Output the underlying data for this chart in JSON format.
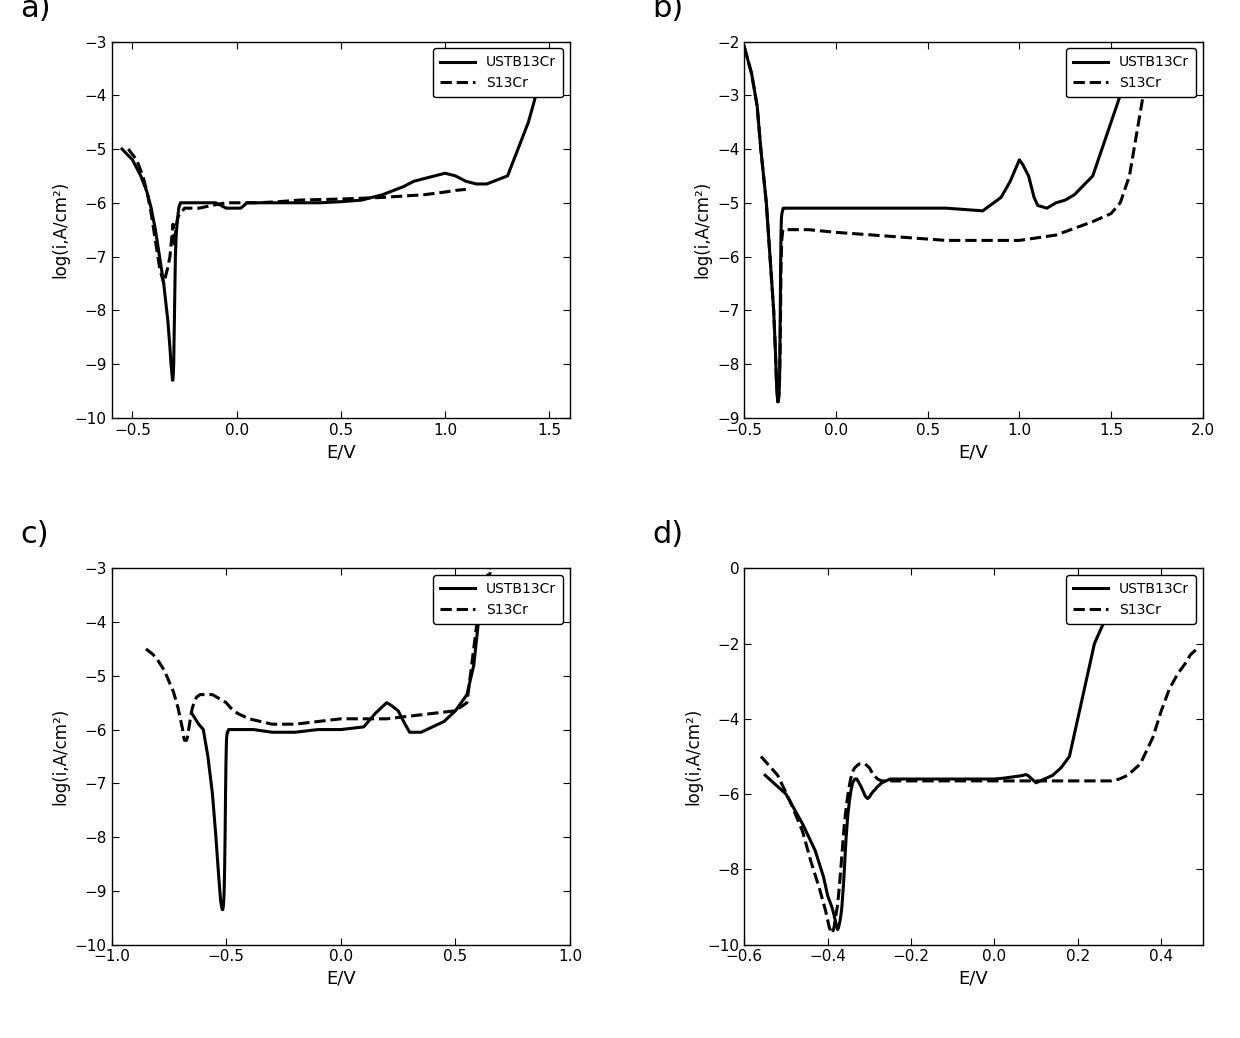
{
  "panels": [
    "a)",
    "b)",
    "c)",
    "d)"
  ],
  "ylabel": "log(i,A/cm²)",
  "xlabel": "E/V",
  "legend_solid": "USTB13Cr",
  "legend_dashed": "S13Cr",
  "panel_a": {
    "xlim": [
      -0.6,
      1.6
    ],
    "ylim": [
      -10,
      -3
    ],
    "xticks": [
      -0.5,
      0.0,
      0.5,
      1.0,
      1.5
    ],
    "yticks": [
      -10,
      -9,
      -8,
      -7,
      -6,
      -5,
      -4,
      -3
    ],
    "solid_x": [
      -0.55,
      -0.5,
      -0.46,
      -0.43,
      -0.41,
      -0.39,
      -0.37,
      -0.35,
      -0.33,
      -0.32,
      -0.315,
      -0.31,
      -0.308,
      -0.306,
      -0.304,
      -0.302,
      -0.3,
      -0.298,
      -0.296,
      -0.294,
      -0.292,
      -0.29,
      -0.286,
      -0.282,
      -0.278,
      -0.274,
      -0.27,
      -0.265,
      -0.255,
      -0.245,
      -0.235,
      -0.22,
      -0.2,
      -0.15,
      -0.1,
      -0.05,
      -0.02,
      0.0,
      0.02,
      0.05,
      0.1,
      0.2,
      0.3,
      0.4,
      0.5,
      0.6,
      0.7,
      0.8,
      0.85,
      0.9,
      0.95,
      1.0,
      1.05,
      1.1,
      1.15,
      1.2,
      1.3,
      1.4,
      1.45,
      1.5
    ],
    "solid_y": [
      -5.0,
      -5.2,
      -5.5,
      -5.8,
      -6.1,
      -6.5,
      -7.0,
      -7.5,
      -8.2,
      -8.7,
      -9.0,
      -9.2,
      -9.3,
      -9.3,
      -9.2,
      -9.0,
      -8.5,
      -8.0,
      -7.5,
      -7.0,
      -6.8,
      -6.6,
      -6.4,
      -6.25,
      -6.1,
      -6.05,
      -6.0,
      -6.0,
      -6.0,
      -6.0,
      -6.0,
      -6.0,
      -6.0,
      -6.0,
      -6.0,
      -6.1,
      -6.1,
      -6.1,
      -6.1,
      -6.0,
      -6.0,
      -6.0,
      -6.0,
      -6.0,
      -5.98,
      -5.95,
      -5.85,
      -5.7,
      -5.6,
      -5.55,
      -5.5,
      -5.45,
      -5.5,
      -5.6,
      -5.65,
      -5.65,
      -5.5,
      -4.5,
      -3.8,
      -3.3
    ],
    "dashed_x": [
      -0.52,
      -0.48,
      -0.45,
      -0.43,
      -0.41,
      -0.39,
      -0.37,
      -0.35,
      -0.33,
      -0.32,
      -0.315,
      -0.31,
      -0.308,
      -0.306,
      -0.304,
      -0.302,
      -0.3,
      -0.298,
      -0.296,
      -0.292,
      -0.288,
      -0.284,
      -0.28,
      -0.27,
      -0.26,
      -0.25,
      -0.22,
      -0.18,
      -0.12,
      -0.05,
      0.0,
      0.1,
      0.2,
      0.3,
      0.5,
      0.7,
      0.9,
      1.0,
      1.05,
      1.1
    ],
    "dashed_y": [
      -5.0,
      -5.2,
      -5.5,
      -5.8,
      -6.2,
      -6.7,
      -7.2,
      -7.5,
      -7.2,
      -7.0,
      -6.8,
      -6.6,
      -6.5,
      -6.4,
      -6.4,
      -6.5,
      -6.7,
      -6.8,
      -6.7,
      -6.5,
      -6.4,
      -6.3,
      -6.25,
      -6.2,
      -6.15,
      -6.1,
      -6.1,
      -6.1,
      -6.05,
      -6.0,
      -6.0,
      -6.0,
      -5.98,
      -5.95,
      -5.93,
      -5.9,
      -5.85,
      -5.8,
      -5.77,
      -5.75
    ]
  },
  "panel_b": {
    "xlim": [
      -0.5,
      2.0
    ],
    "ylim": [
      -9,
      -2
    ],
    "xticks": [
      -0.5,
      0.0,
      0.5,
      1.0,
      1.5,
      2.0
    ],
    "yticks": [
      -9,
      -8,
      -7,
      -6,
      -5,
      -4,
      -3,
      -2
    ],
    "solid_x": [
      -0.5,
      -0.46,
      -0.43,
      -0.41,
      -0.38,
      -0.36,
      -0.34,
      -0.33,
      -0.325,
      -0.32,
      -0.318,
      -0.315,
      -0.312,
      -0.31,
      -0.308,
      -0.306,
      -0.304,
      -0.302,
      -0.3,
      -0.298,
      -0.295,
      -0.292,
      -0.288,
      -0.284,
      -0.28,
      -0.27,
      -0.26,
      -0.25,
      -0.22,
      -0.18,
      -0.1,
      0.0,
      0.2,
      0.4,
      0.6,
      0.8,
      0.9,
      0.95,
      1.0,
      1.02,
      1.05,
      1.08,
      1.1,
      1.15,
      1.2,
      1.25,
      1.3,
      1.4,
      1.5,
      1.55
    ],
    "solid_y": [
      -2.1,
      -2.6,
      -3.2,
      -4.0,
      -5.0,
      -6.0,
      -7.0,
      -7.8,
      -8.3,
      -8.6,
      -8.7,
      -8.7,
      -8.6,
      -8.5,
      -8.3,
      -7.8,
      -7.0,
      -6.2,
      -5.6,
      -5.3,
      -5.2,
      -5.15,
      -5.1,
      -5.1,
      -5.1,
      -5.1,
      -5.1,
      -5.1,
      -5.1,
      -5.1,
      -5.1,
      -5.1,
      -5.1,
      -5.1,
      -5.1,
      -5.15,
      -4.9,
      -4.6,
      -4.2,
      -4.3,
      -4.5,
      -4.9,
      -5.05,
      -5.1,
      -5.0,
      -4.95,
      -4.85,
      -4.5,
      -3.5,
      -3.0
    ],
    "dashed_x": [
      -0.5,
      -0.46,
      -0.43,
      -0.41,
      -0.38,
      -0.36,
      -0.34,
      -0.33,
      -0.325,
      -0.32,
      -0.318,
      -0.315,
      -0.312,
      -0.31,
      -0.308,
      -0.305,
      -0.302,
      -0.3,
      -0.296,
      -0.29,
      -0.28,
      -0.26,
      -0.22,
      -0.15,
      0.0,
      0.2,
      0.4,
      0.6,
      0.8,
      1.0,
      1.2,
      1.4,
      1.5,
      1.55,
      1.6,
      1.65,
      1.7
    ],
    "dashed_y": [
      -2.1,
      -2.6,
      -3.2,
      -4.0,
      -5.0,
      -6.0,
      -7.0,
      -7.8,
      -8.3,
      -8.6,
      -8.7,
      -8.7,
      -8.6,
      -8.5,
      -8.3,
      -7.8,
      -7.0,
      -6.2,
      -5.7,
      -5.5,
      -5.5,
      -5.5,
      -5.5,
      -5.5,
      -5.55,
      -5.6,
      -5.65,
      -5.7,
      -5.7,
      -5.7,
      -5.6,
      -5.35,
      -5.2,
      -5.0,
      -4.5,
      -3.5,
      -2.5
    ]
  },
  "panel_c": {
    "xlim": [
      -1.0,
      1.0
    ],
    "ylim": [
      -10,
      -3
    ],
    "xticks": [
      -1.0,
      -0.5,
      0.0,
      0.5,
      1.0
    ],
    "yticks": [
      -10,
      -9,
      -8,
      -7,
      -6,
      -5,
      -4,
      -3
    ],
    "solid_x": [
      -0.65,
      -0.62,
      -0.6,
      -0.58,
      -0.56,
      -0.545,
      -0.535,
      -0.528,
      -0.524,
      -0.52,
      -0.517,
      -0.515,
      -0.513,
      -0.511,
      -0.509,
      -0.507,
      -0.505,
      -0.503,
      -0.501,
      -0.499,
      -0.497,
      -0.495,
      -0.493,
      -0.49,
      -0.485,
      -0.48,
      -0.47,
      -0.46,
      -0.45,
      -0.42,
      -0.38,
      -0.3,
      -0.2,
      -0.1,
      0.0,
      0.1,
      0.15,
      0.2,
      0.22,
      0.25,
      0.28,
      0.3,
      0.35,
      0.4,
      0.45,
      0.5,
      0.55,
      0.58,
      0.6,
      0.62,
      0.65
    ],
    "solid_y": [
      -5.7,
      -5.9,
      -6.0,
      -6.5,
      -7.2,
      -8.0,
      -8.6,
      -9.0,
      -9.2,
      -9.3,
      -9.35,
      -9.35,
      -9.3,
      -9.2,
      -9.0,
      -8.6,
      -8.0,
      -7.2,
      -6.6,
      -6.2,
      -6.1,
      -6.05,
      -6.05,
      -6.0,
      -6.0,
      -6.0,
      -6.0,
      -6.0,
      -6.0,
      -6.0,
      -6.0,
      -6.05,
      -6.05,
      -6.0,
      -6.0,
      -5.95,
      -5.7,
      -5.5,
      -5.55,
      -5.65,
      -5.9,
      -6.05,
      -6.05,
      -5.95,
      -5.85,
      -5.65,
      -5.35,
      -4.8,
      -4.0,
      -3.5,
      -3.1
    ],
    "dashed_x": [
      -0.85,
      -0.82,
      -0.8,
      -0.77,
      -0.75,
      -0.73,
      -0.71,
      -0.7,
      -0.69,
      -0.688,
      -0.685,
      -0.682,
      -0.679,
      -0.676,
      -0.673,
      -0.67,
      -0.667,
      -0.664,
      -0.66,
      -0.655,
      -0.648,
      -0.64,
      -0.63,
      -0.615,
      -0.6,
      -0.58,
      -0.56,
      -0.54,
      -0.52,
      -0.5,
      -0.48,
      -0.45,
      -0.4,
      -0.3,
      -0.2,
      -0.1,
      0.0,
      0.1,
      0.2,
      0.3,
      0.4,
      0.5,
      0.55,
      0.6,
      0.62,
      0.65
    ],
    "dashed_y": [
      -4.5,
      -4.6,
      -4.7,
      -4.9,
      -5.1,
      -5.3,
      -5.6,
      -5.8,
      -6.0,
      -6.1,
      -6.15,
      -6.2,
      -6.2,
      -6.2,
      -6.2,
      -6.15,
      -6.1,
      -6.0,
      -5.9,
      -5.75,
      -5.6,
      -5.5,
      -5.4,
      -5.35,
      -5.35,
      -5.35,
      -5.35,
      -5.4,
      -5.45,
      -5.5,
      -5.6,
      -5.7,
      -5.8,
      -5.9,
      -5.9,
      -5.85,
      -5.8,
      -5.8,
      -5.8,
      -5.75,
      -5.7,
      -5.65,
      -5.5,
      -3.8,
      -3.4,
      -3.0
    ]
  },
  "panel_d": {
    "xlim": [
      -0.6,
      0.5
    ],
    "ylim": [
      -10,
      0
    ],
    "xticks": [
      -0.6,
      -0.4,
      -0.2,
      0.0,
      0.2,
      0.4
    ],
    "yticks": [
      -10,
      -8,
      -6,
      -4,
      -2,
      0
    ],
    "solid_x": [
      -0.55,
      -0.5,
      -0.46,
      -0.43,
      -0.41,
      -0.4,
      -0.39,
      -0.385,
      -0.382,
      -0.38,
      -0.378,
      -0.376,
      -0.374,
      -0.372,
      -0.37,
      -0.368,
      -0.366,
      -0.364,
      -0.362,
      -0.36,
      -0.358,
      -0.356,
      -0.352,
      -0.348,
      -0.344,
      -0.34,
      -0.335,
      -0.33,
      -0.325,
      -0.32,
      -0.318,
      -0.316,
      -0.314,
      -0.312,
      -0.31,
      -0.308,
      -0.306,
      -0.304,
      -0.302,
      -0.3,
      -0.298,
      -0.296,
      -0.294,
      -0.292,
      -0.29,
      -0.288,
      -0.286,
      -0.284,
      -0.282,
      -0.28,
      -0.275,
      -0.27,
      -0.26,
      -0.25,
      -0.22,
      -0.18,
      -0.12,
      -0.05,
      0.0,
      0.02,
      0.04,
      0.06,
      0.07,
      0.075,
      0.08,
      0.085,
      0.09,
      0.095,
      0.1,
      0.11,
      0.12,
      0.14,
      0.16,
      0.18,
      0.2,
      0.22,
      0.24,
      0.26,
      0.28,
      0.3
    ],
    "solid_y": [
      -5.5,
      -6.0,
      -6.8,
      -7.5,
      -8.2,
      -8.7,
      -9.0,
      -9.2,
      -9.35,
      -9.45,
      -9.55,
      -9.6,
      -9.55,
      -9.45,
      -9.35,
      -9.2,
      -9.0,
      -8.7,
      -8.4,
      -8.0,
      -7.6,
      -7.2,
      -6.6,
      -6.2,
      -5.9,
      -5.7,
      -5.6,
      -5.6,
      -5.7,
      -5.8,
      -5.85,
      -5.9,
      -5.95,
      -6.0,
      -6.05,
      -6.08,
      -6.1,
      -6.12,
      -6.1,
      -6.08,
      -6.05,
      -6.0,
      -5.98,
      -5.95,
      -5.92,
      -5.9,
      -5.88,
      -5.85,
      -5.82,
      -5.8,
      -5.75,
      -5.7,
      -5.65,
      -5.6,
      -5.6,
      -5.6,
      -5.6,
      -5.6,
      -5.6,
      -5.58,
      -5.55,
      -5.52,
      -5.5,
      -5.48,
      -5.5,
      -5.55,
      -5.6,
      -5.65,
      -5.7,
      -5.65,
      -5.6,
      -5.5,
      -5.3,
      -5.0,
      -4.0,
      -3.0,
      -2.0,
      -1.5,
      -1.3,
      -1.0
    ],
    "dashed_x": [
      -0.56,
      -0.52,
      -0.49,
      -0.46,
      -0.44,
      -0.42,
      -0.41,
      -0.405,
      -0.402,
      -0.4,
      -0.398,
      -0.396,
      -0.394,
      -0.392,
      -0.39,
      -0.388,
      -0.386,
      -0.384,
      -0.382,
      -0.38,
      -0.377,
      -0.374,
      -0.37,
      -0.365,
      -0.36,
      -0.355,
      -0.35,
      -0.345,
      -0.34,
      -0.335,
      -0.33,
      -0.325,
      -0.32,
      -0.315,
      -0.31,
      -0.305,
      -0.3,
      -0.295,
      -0.29,
      -0.285,
      -0.28,
      -0.275,
      -0.27,
      -0.265,
      -0.26,
      -0.255,
      -0.25,
      -0.22,
      -0.18,
      -0.12,
      -0.05,
      0.0,
      0.05,
      0.1,
      0.15,
      0.2,
      0.22,
      0.24,
      0.26,
      0.28,
      0.3,
      0.32,
      0.35,
      0.38,
      0.4,
      0.42,
      0.44,
      0.46,
      0.47,
      0.48,
      0.49
    ],
    "dashed_y": [
      -5.0,
      -5.5,
      -6.2,
      -7.0,
      -7.8,
      -8.5,
      -8.9,
      -9.1,
      -9.25,
      -9.35,
      -9.45,
      -9.55,
      -9.6,
      -9.65,
      -9.7,
      -9.65,
      -9.6,
      -9.5,
      -9.35,
      -9.2,
      -9.0,
      -8.7,
      -8.2,
      -7.5,
      -6.8,
      -6.3,
      -5.9,
      -5.6,
      -5.4,
      -5.3,
      -5.25,
      -5.2,
      -5.2,
      -5.2,
      -5.2,
      -5.25,
      -5.3,
      -5.4,
      -5.5,
      -5.55,
      -5.6,
      -5.63,
      -5.65,
      -5.65,
      -5.65,
      -5.65,
      -5.65,
      -5.65,
      -5.65,
      -5.65,
      -5.65,
      -5.65,
      -5.65,
      -5.65,
      -5.65,
      -5.65,
      -5.65,
      -5.65,
      -5.65,
      -5.65,
      -5.6,
      -5.5,
      -5.2,
      -4.5,
      -3.8,
      -3.2,
      -2.8,
      -2.5,
      -2.3,
      -2.2,
      -2.1
    ]
  }
}
